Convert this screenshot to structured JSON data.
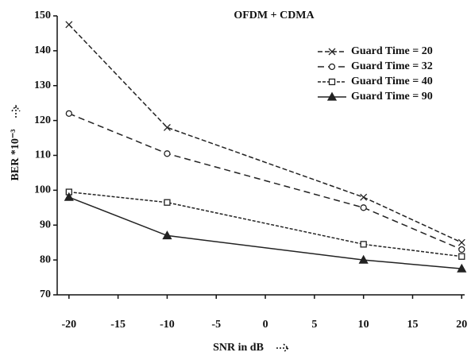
{
  "chart_data": {
    "type": "line",
    "title": "OFDM + CDMA",
    "x_label": "SNR in dB",
    "y_label": "BER *10⁻³",
    "x": [
      -20,
      -10,
      10,
      20
    ],
    "series": [
      {
        "name": "Guard Time = 20",
        "color": "#222222",
        "dash": "6,3",
        "marker": "x",
        "values": [
          147.5,
          118,
          98,
          85
        ]
      },
      {
        "name": "Guard Time = 32",
        "color": "#222222",
        "dash": "8,5",
        "marker": "circle",
        "values": [
          122,
          110.5,
          95,
          83
        ]
      },
      {
        "name": "Guard Time = 40",
        "color": "#222222",
        "dash": "4,2",
        "marker": "square",
        "values": [
          99.5,
          96.5,
          84.5,
          81
        ]
      },
      {
        "name": "Guard Time = 90",
        "color": "#222222",
        "dash": "none",
        "marker": "triangle",
        "values": [
          98,
          87,
          80,
          77.5
        ]
      }
    ],
    "xlim": [
      -21.2,
      20.3
    ],
    "ylim": [
      70,
      150
    ],
    "xticks": [
      -20,
      -15,
      -10,
      -5,
      0,
      5,
      10,
      15,
      20
    ],
    "yticks": [
      70,
      80,
      90,
      100,
      110,
      120,
      130,
      140,
      150
    ],
    "legend": "upper-right"
  }
}
